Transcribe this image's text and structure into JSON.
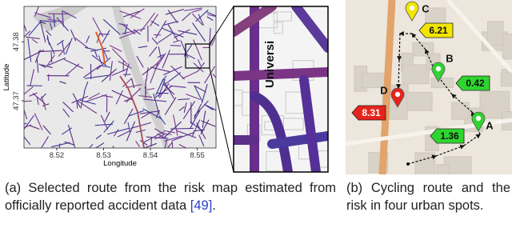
{
  "figure_a": {
    "plot": {
      "x_label": "Longitude",
      "y_label": "Latitude",
      "xlim": [
        8.513,
        8.554
      ],
      "xticks": [
        8.52,
        8.53,
        8.54,
        8.55
      ],
      "ylim": [
        47.362,
        47.386
      ],
      "yticks": [
        47.37,
        47.38
      ]
    },
    "zoom_map_label": "Universi",
    "caption": {
      "label": "(a)",
      "text": "Selected route from the risk map estimated from officially reported accident data",
      "citation": "[49]",
      "end": "."
    }
  },
  "figure_b": {
    "spots": [
      {
        "name": "A",
        "risk": 1.36,
        "color": "#2fd52f"
      },
      {
        "name": "B",
        "risk": 0.42,
        "color": "#2fd52f"
      },
      {
        "name": "C",
        "risk": 6.21,
        "color": "#f2e600"
      },
      {
        "name": "D",
        "risk": 8.31,
        "color": "#e8231c"
      }
    ],
    "caption": {
      "label": "(b)",
      "text": "Cycling route and the risk in four urban spots."
    }
  }
}
